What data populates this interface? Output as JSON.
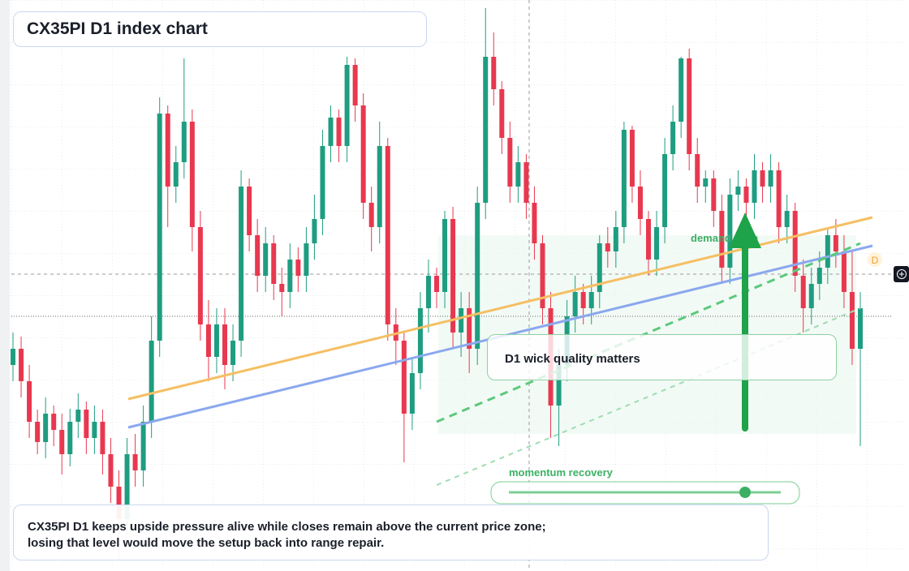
{
  "chart_data": {
    "type": "candlestick",
    "title": "CX35PI D1 index chart",
    "ylim": [
      0,
      704
    ],
    "up_color": "#1f9d80",
    "down_color": "#e8384f",
    "open": [
      254,
      274,
      234,
      184,
      159,
      194,
      174,
      144,
      184,
      199,
      164,
      184,
      144,
      104,
      64,
      144,
      124,
      184,
      284,
      564,
      474,
      504,
      554,
      424,
      304,
      264,
      304,
      254,
      284,
      474,
      414,
      364,
      404,
      354,
      344,
      384,
      364,
      404,
      434,
      524,
      559,
      524,
      624,
      574,
      454,
      424,
      524,
      304,
      284,
      194,
      244,
      324,
      364,
      344,
      434,
      294,
      324,
      274,
      454,
      634,
      594,
      534,
      474,
      504,
      454,
      404,
      324,
      204,
      254,
      314,
      344,
      324,
      344,
      404,
      394,
      424,
      544,
      474,
      434,
      384,
      424,
      514,
      554,
      632,
      514,
      474,
      484,
      444,
      374,
      464,
      474,
      454,
      494,
      474,
      494,
      424,
      444,
      364,
      324,
      354,
      374,
      414,
      394,
      344,
      274
    ],
    "high": [
      294,
      289,
      254,
      199,
      214,
      204,
      194,
      200,
      219,
      209,
      204,
      199,
      164,
      124,
      164,
      169,
      204,
      314,
      584,
      574,
      524,
      632,
      569,
      444,
      334,
      324,
      324,
      304,
      494,
      484,
      434,
      424,
      414,
      374,
      404,
      399,
      424,
      464,
      544,
      574,
      569,
      634,
      632,
      589,
      474,
      554,
      534,
      324,
      294,
      264,
      344,
      384,
      374,
      444,
      449,
      344,
      344,
      474,
      694,
      664,
      604,
      554,
      524,
      514,
      474,
      414,
      344,
      274,
      334,
      364,
      354,
      364,
      414,
      424,
      444,
      554,
      549,
      494,
      444,
      444,
      534,
      574,
      634,
      644,
      534,
      494,
      494,
      464,
      484,
      494,
      484,
      514,
      504,
      514,
      504,
      464,
      454,
      384,
      374,
      394,
      424,
      434,
      414,
      394,
      344
    ],
    "low": [
      234,
      214,
      164,
      144,
      139,
      154,
      119,
      129,
      164,
      144,
      144,
      119,
      84,
      14,
      44,
      104,
      104,
      164,
      264,
      424,
      454,
      484,
      394,
      284,
      234,
      244,
      224,
      234,
      264,
      394,
      344,
      344,
      334,
      314,
      324,
      344,
      344,
      384,
      414,
      504,
      504,
      504,
      554,
      434,
      394,
      404,
      284,
      254,
      134,
      174,
      224,
      294,
      324,
      324,
      274,
      264,
      244,
      254,
      434,
      574,
      514,
      454,
      454,
      434,
      384,
      304,
      164,
      154,
      234,
      294,
      304,
      304,
      324,
      374,
      374,
      404,
      454,
      414,
      364,
      364,
      404,
      494,
      534,
      494,
      454,
      454,
      424,
      354,
      354,
      444,
      434,
      434,
      454,
      454,
      404,
      404,
      344,
      294,
      304,
      334,
      354,
      374,
      324,
      254,
      154
    ],
    "close": [
      274,
      234,
      184,
      159,
      194,
      174,
      144,
      184,
      199,
      164,
      184,
      144,
      104,
      64,
      144,
      124,
      184,
      284,
      564,
      474,
      504,
      554,
      424,
      304,
      264,
      304,
      254,
      284,
      474,
      414,
      364,
      404,
      354,
      344,
      384,
      364,
      404,
      434,
      524,
      559,
      524,
      624,
      574,
      454,
      424,
      524,
      304,
      284,
      194,
      244,
      324,
      364,
      344,
      434,
      294,
      324,
      274,
      454,
      634,
      594,
      534,
      474,
      504,
      454,
      404,
      324,
      204,
      254,
      314,
      344,
      324,
      344,
      404,
      394,
      424,
      544,
      474,
      434,
      384,
      424,
      514,
      554,
      632,
      514,
      474,
      484,
      444,
      374,
      464,
      474,
      454,
      494,
      474,
      494,
      424,
      444,
      364,
      324,
      354,
      374,
      414,
      394,
      344,
      274,
      324
    ],
    "annotations": [
      "D1 wick quality matters",
      "demand zone",
      "momentum recovery",
      "D"
    ],
    "footer": [
      "CX35PI D1 keeps upside pressure alive while closes remain above the current price zone;",
      "losing that level would move the setup back into range repair."
    ]
  }
}
